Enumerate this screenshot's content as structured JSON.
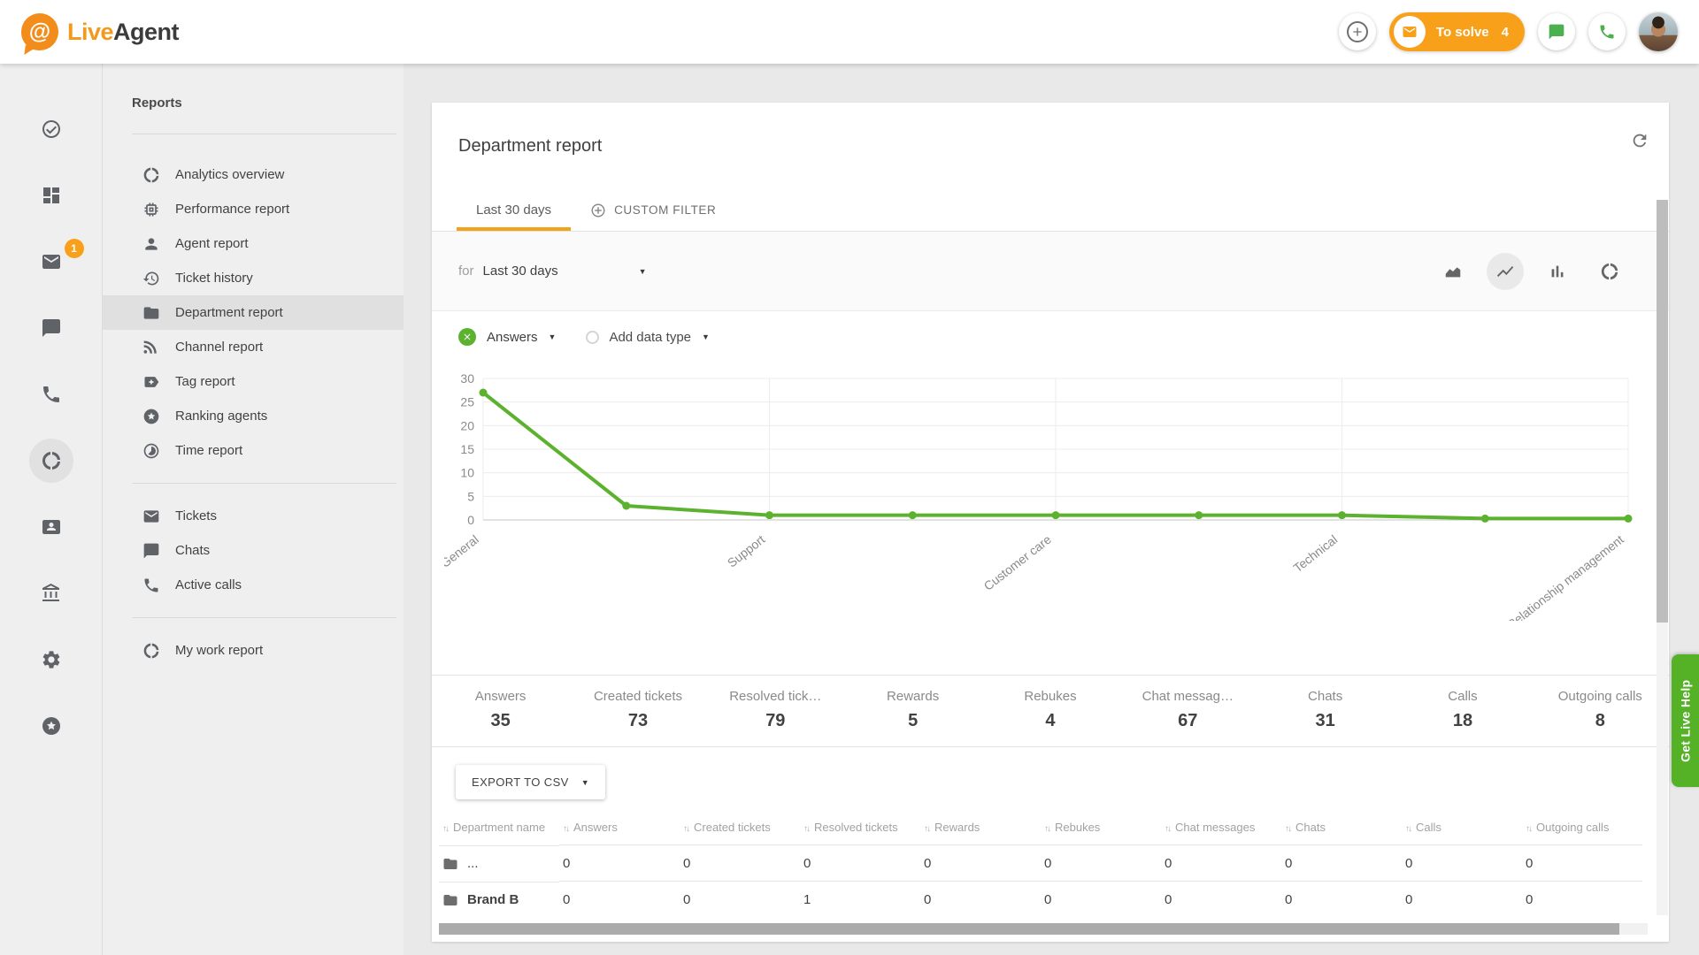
{
  "colors": {
    "accent_orange": "#F9A01B",
    "tab_orange": "#F5A21B",
    "chart_green": "#5CB22E",
    "help_green": "#55B226",
    "logo_orange": "#F28D1C"
  },
  "header": {
    "brand": {
      "first": "Live",
      "second": "Agent"
    },
    "add_button": {
      "icon": "plus"
    },
    "to_solve": {
      "icon": "mail",
      "label": "To solve",
      "count": "4"
    },
    "actions": [
      {
        "icon": "chat"
      },
      {
        "icon": "phone"
      }
    ]
  },
  "icon_rail": {
    "items": [
      {
        "icon": "check-circle",
        "name": "to-solve"
      },
      {
        "icon": "dashboard",
        "name": "dashboard"
      },
      {
        "icon": "mail",
        "name": "tickets",
        "badge": "1"
      },
      {
        "icon": "chat",
        "name": "chats"
      },
      {
        "icon": "phone",
        "name": "calls"
      },
      {
        "icon": "donut",
        "name": "reports",
        "selected": true
      },
      {
        "icon": "card",
        "name": "customers"
      },
      {
        "icon": "bank",
        "name": "company"
      },
      {
        "icon": "gear",
        "name": "settings"
      },
      {
        "icon": "star-circle",
        "name": "ranking"
      }
    ]
  },
  "sidebar": {
    "title": "Reports",
    "groups": [
      {
        "items": [
          {
            "icon": "donut",
            "label": "Analytics overview"
          },
          {
            "icon": "chip",
            "label": "Performance report"
          },
          {
            "icon": "person",
            "label": "Agent report"
          },
          {
            "icon": "history",
            "label": "Ticket history"
          },
          {
            "icon": "folder",
            "label": "Department report",
            "selected": true
          },
          {
            "icon": "rss",
            "label": "Channel report"
          },
          {
            "icon": "tag",
            "label": "Tag report"
          },
          {
            "icon": "star-circle",
            "label": "Ranking agents"
          },
          {
            "icon": "timelapse",
            "label": "Time report"
          }
        ]
      },
      {
        "items": [
          {
            "icon": "mail",
            "label": "Tickets"
          },
          {
            "icon": "chat",
            "label": "Chats"
          },
          {
            "icon": "phone",
            "label": "Active calls"
          }
        ]
      },
      {
        "items": [
          {
            "icon": "donut",
            "label": "My work report"
          }
        ]
      }
    ]
  },
  "main": {
    "title": "Department report",
    "refresh_icon": "refresh",
    "tabs": [
      {
        "label": "Last 30 days",
        "active": true
      },
      {
        "label": "CUSTOM FILTER",
        "icon": "plus-circle"
      }
    ],
    "filter": {
      "prefix": "for",
      "value": "Last 30 days"
    },
    "chart_toolbar": [
      {
        "icon": "area-chart"
      },
      {
        "icon": "line-chart",
        "active": true
      },
      {
        "icon": "bar-chart"
      },
      {
        "icon": "donut-chart"
      }
    ],
    "series_controls": {
      "chip_label": "Answers",
      "add_label": "Add data type"
    },
    "stats": [
      {
        "label": "Answers",
        "value": "35"
      },
      {
        "label": "Created tickets",
        "value": "73"
      },
      {
        "label": "Resolved tick…",
        "value": "79"
      },
      {
        "label": "Rewards",
        "value": "5"
      },
      {
        "label": "Rebukes",
        "value": "4"
      },
      {
        "label": "Chat messag…",
        "value": "67"
      },
      {
        "label": "Chats",
        "value": "31"
      },
      {
        "label": "Calls",
        "value": "18"
      },
      {
        "label": "Outgoing calls",
        "value": "8"
      }
    ],
    "export_label": "EXPORT TO CSV",
    "table": {
      "columns": [
        "Department name",
        "Answers",
        "Created tickets",
        "Resolved tickets",
        "Rewards",
        "Rebukes",
        "Chat messages",
        "Chats",
        "Calls",
        "Outgoing calls"
      ],
      "rows": [
        {
          "name": "...",
          "bold": false,
          "values": [
            "0",
            "0",
            "0",
            "0",
            "0",
            "0",
            "0",
            "0",
            "0"
          ]
        },
        {
          "name": "Brand B",
          "bold": true,
          "values": [
            "0",
            "0",
            "1",
            "0",
            "0",
            "0",
            "0",
            "0",
            "0"
          ]
        }
      ]
    }
  },
  "chart_data": {
    "type": "line",
    "title": "",
    "xlabel": "",
    "ylabel": "",
    "categories": [
      "General",
      "",
      "Support",
      "",
      "Customer care",
      "",
      "Technical",
      "",
      "Relationship management"
    ],
    "series": [
      {
        "name": "Answers",
        "color": "#5CB22E",
        "values": [
          27,
          3,
          1,
          1,
          1,
          1,
          1,
          0.3,
          0.3
        ]
      }
    ],
    "ylim": [
      0,
      30
    ],
    "yticks": [
      0,
      5,
      10,
      15,
      20,
      25,
      30
    ],
    "grid": true,
    "legend": "none"
  },
  "live_help": "Get Live Help"
}
